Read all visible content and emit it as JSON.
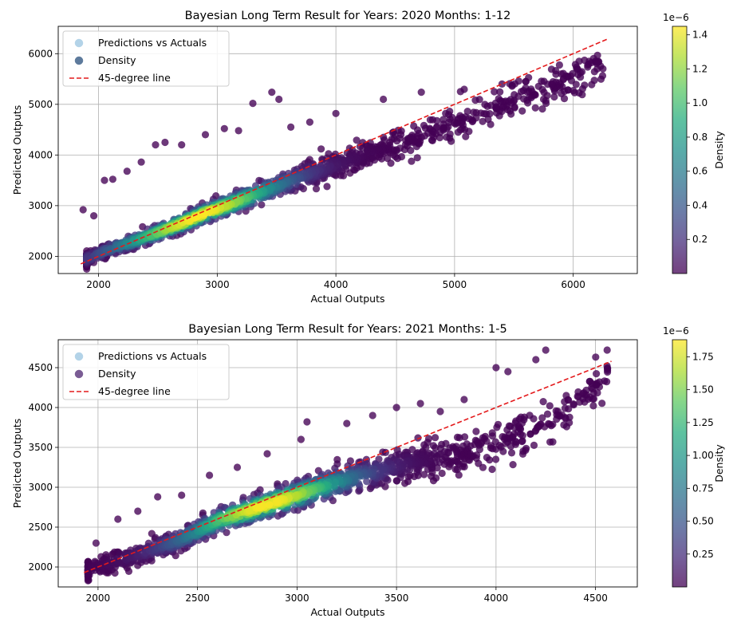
{
  "chart_data": [
    {
      "type": "scatter",
      "title": "Bayesian Long Term Result for Years: 2020 Months: 1-12",
      "xlabel": "Actual Outputs",
      "ylabel": "Predicted Outputs",
      "xlim": [
        1660,
        6540
      ],
      "ylim": [
        1660,
        6540
      ],
      "xticks": [
        2000,
        3000,
        4000,
        5000,
        6000
      ],
      "yticks": [
        2000,
        3000,
        4000,
        5000,
        6000
      ],
      "grid": true,
      "legend_position": "top-left",
      "legend": [
        {
          "label": "Predictions vs Actuals",
          "marker": "circle",
          "color": "#b3d3e8"
        },
        {
          "label": "Density",
          "marker": "circle",
          "color": "#5d7a9c"
        },
        {
          "label": "45-degree line",
          "marker": "dashed-line",
          "color": "#e41a1c"
        }
      ],
      "reference_line": {
        "name": "45-degree line",
        "x": [
          1850,
          6300
        ],
        "y": [
          1850,
          6300
        ],
        "style": "dashed",
        "color": "#e41a1c"
      },
      "colorbar": {
        "label": "Density",
        "exponent": "1e−6",
        "min": 0.0,
        "max": 1.45,
        "ticks": [
          "0.2",
          "0.4",
          "0.6",
          "0.8",
          "1.0",
          "1.2",
          "1.4"
        ],
        "tick_values": [
          0.2,
          0.4,
          0.6,
          0.8,
          1.0,
          1.2,
          1.4
        ]
      },
      "series": [
        {
          "name": "Predictions vs Actuals",
          "x": [
            1900,
            2100,
            2300,
            2500,
            2700,
            2900,
            3100,
            3300,
            3500,
            3700,
            3900,
            4100,
            4300,
            4500,
            4700,
            4900,
            5100,
            5300,
            5500,
            5700,
            5900,
            6100,
            6250
          ],
          "y": [
            1950,
            2150,
            2300,
            2470,
            2650,
            2850,
            3020,
            3200,
            3380,
            3560,
            3720,
            3880,
            4040,
            4200,
            4380,
            4550,
            4720,
            4900,
            5080,
            5250,
            5420,
            5600,
            5780
          ]
        }
      ],
      "outliers": {
        "x": [
          1870,
          1960,
          2050,
          2120,
          2240,
          2360,
          2480,
          2560,
          2700,
          2900,
          3060,
          3180,
          3300,
          3460,
          3520,
          3620,
          3780,
          4000,
          4400,
          4720,
          5050,
          5400,
          5600,
          5750,
          5900,
          6050,
          6150
        ],
        "y": [
          2920,
          2800,
          3500,
          3520,
          3680,
          3860,
          4200,
          4250,
          4200,
          4400,
          4520,
          4480,
          5020,
          5240,
          5100,
          4550,
          4650,
          4820,
          5100,
          5240,
          5250,
          5400,
          5450,
          5100,
          5600,
          5850,
          5820
        ]
      }
    },
    {
      "type": "scatter",
      "title": "Bayesian Long Term Result for Years: 2021 Months: 1-5",
      "xlabel": "Actual Outputs",
      "ylabel": "Predicted Outputs",
      "xlim": [
        1800,
        4710
      ],
      "ylim": [
        1750,
        4850
      ],
      "xticks": [
        2000,
        2500,
        3000,
        3500,
        4000,
        4500
      ],
      "yticks": [
        2000,
        2500,
        3000,
        3500,
        4000,
        4500
      ],
      "grid": true,
      "legend_position": "top-left",
      "legend": [
        {
          "label": "Predictions vs Actuals",
          "marker": "circle",
          "color": "#b3d3e8"
        },
        {
          "label": "Density",
          "marker": "circle",
          "color": "#7a5c94"
        },
        {
          "label": "45-degree line",
          "marker": "dashed-line",
          "color": "#e41a1c"
        }
      ],
      "reference_line": {
        "name": "45-degree line",
        "x": [
          1930,
          4580
        ],
        "y": [
          1930,
          4580
        ],
        "style": "dashed",
        "color": "#e41a1c"
      },
      "colorbar": {
        "label": "Density",
        "exponent": "1e−6",
        "min": 0.0,
        "max": 1.88,
        "ticks": [
          "0.25",
          "0.50",
          "0.75",
          "1.00",
          "1.25",
          "1.50",
          "1.75"
        ],
        "tick_values": [
          0.25,
          0.5,
          0.75,
          1.0,
          1.25,
          1.5,
          1.75
        ]
      },
      "series": [
        {
          "name": "Predictions vs Actuals",
          "x": [
            1950,
            2100,
            2250,
            2400,
            2500,
            2600,
            2750,
            2900,
            3050,
            3200,
            3350,
            3500,
            3650,
            3800,
            3950,
            4100,
            4250,
            4400,
            4560
          ],
          "y": [
            1950,
            2080,
            2200,
            2330,
            2450,
            2580,
            2700,
            2820,
            2940,
            3060,
            3160,
            3260,
            3340,
            3420,
            3500,
            3650,
            3800,
            4000,
            4450
          ]
        }
      ],
      "outliers": {
        "x": [
          1990,
          2100,
          2200,
          2300,
          2420,
          2560,
          2700,
          2850,
          3020,
          3050,
          3250,
          3380,
          3500,
          3620,
          3720,
          3840,
          3900,
          4000,
          4060,
          4200,
          4250,
          4480,
          4520
        ],
        "y": [
          2300,
          2600,
          2700,
          2880,
          2900,
          3150,
          3250,
          3420,
          3600,
          3820,
          3800,
          3900,
          4000,
          4050,
          3950,
          4100,
          3700,
          4500,
          4450,
          4600,
          4720,
          4250,
          4320
        ]
      }
    }
  ]
}
